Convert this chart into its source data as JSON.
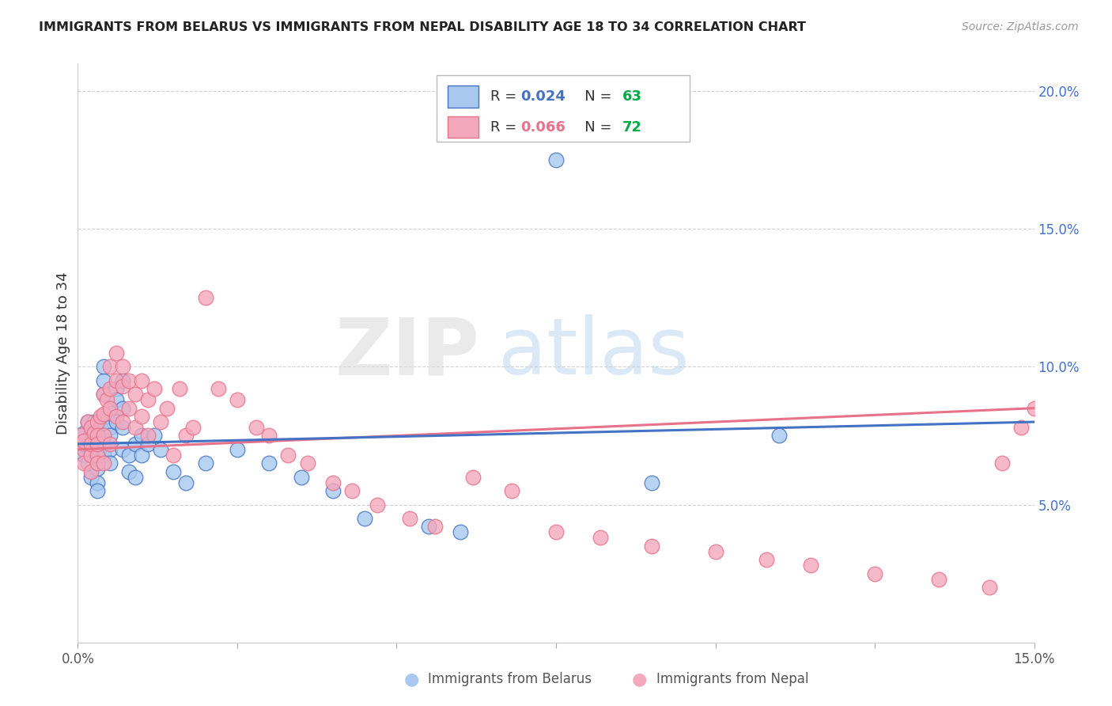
{
  "title": "IMMIGRANTS FROM BELARUS VS IMMIGRANTS FROM NEPAL DISABILITY AGE 18 TO 34 CORRELATION CHART",
  "source": "Source: ZipAtlas.com",
  "ylabel_label": "Disability Age 18 to 34",
  "xlim": [
    0.0,
    0.15
  ],
  "ylim": [
    0.0,
    0.21
  ],
  "legend_r1": "0.024",
  "legend_n1": "63",
  "legend_r2": "0.066",
  "legend_n2": "72",
  "color_belarus": "#a8c8f0",
  "color_nepal": "#f4a8bc",
  "color_line_belarus": "#4472C4",
  "color_line_nepal": "#E8728A",
  "color_n_green": "#00aa44",
  "watermark_zip": "ZIP",
  "watermark_atlas": "atlas",
  "belarus_x": [
    0.0005,
    0.001,
    0.001,
    0.001,
    0.0015,
    0.0015,
    0.002,
    0.002,
    0.002,
    0.002,
    0.002,
    0.0025,
    0.0025,
    0.003,
    0.003,
    0.003,
    0.003,
    0.003,
    0.003,
    0.003,
    0.003,
    0.0035,
    0.004,
    0.004,
    0.004,
    0.004,
    0.004,
    0.004,
    0.0045,
    0.005,
    0.005,
    0.005,
    0.005,
    0.005,
    0.006,
    0.006,
    0.006,
    0.007,
    0.007,
    0.007,
    0.007,
    0.008,
    0.008,
    0.009,
    0.009,
    0.01,
    0.01,
    0.011,
    0.012,
    0.013,
    0.015,
    0.017,
    0.02,
    0.025,
    0.03,
    0.035,
    0.04,
    0.045,
    0.055,
    0.06,
    0.075,
    0.09,
    0.11
  ],
  "belarus_y": [
    0.073,
    0.068,
    0.072,
    0.076,
    0.065,
    0.08,
    0.07,
    0.073,
    0.076,
    0.068,
    0.06,
    0.075,
    0.08,
    0.07,
    0.073,
    0.068,
    0.075,
    0.065,
    0.063,
    0.058,
    0.055,
    0.078,
    0.072,
    0.068,
    0.075,
    0.09,
    0.095,
    0.1,
    0.082,
    0.078,
    0.085,
    0.075,
    0.07,
    0.065,
    0.092,
    0.088,
    0.08,
    0.095,
    0.085,
    0.078,
    0.07,
    0.068,
    0.062,
    0.072,
    0.06,
    0.075,
    0.068,
    0.072,
    0.075,
    0.07,
    0.062,
    0.058,
    0.065,
    0.07,
    0.065,
    0.06,
    0.055,
    0.045,
    0.042,
    0.04,
    0.175,
    0.058,
    0.075
  ],
  "nepal_x": [
    0.0005,
    0.001,
    0.001,
    0.001,
    0.0015,
    0.002,
    0.002,
    0.002,
    0.002,
    0.0025,
    0.003,
    0.003,
    0.003,
    0.003,
    0.003,
    0.0035,
    0.004,
    0.004,
    0.004,
    0.004,
    0.0045,
    0.005,
    0.005,
    0.005,
    0.005,
    0.006,
    0.006,
    0.006,
    0.007,
    0.007,
    0.007,
    0.008,
    0.008,
    0.009,
    0.009,
    0.01,
    0.01,
    0.011,
    0.011,
    0.012,
    0.013,
    0.014,
    0.015,
    0.016,
    0.017,
    0.018,
    0.02,
    0.022,
    0.025,
    0.028,
    0.03,
    0.033,
    0.036,
    0.04,
    0.043,
    0.047,
    0.052,
    0.056,
    0.062,
    0.068,
    0.075,
    0.082,
    0.09,
    0.1,
    0.108,
    0.115,
    0.125,
    0.135,
    0.143,
    0.15,
    0.148,
    0.145
  ],
  "nepal_y": [
    0.075,
    0.07,
    0.073,
    0.065,
    0.08,
    0.068,
    0.072,
    0.078,
    0.062,
    0.076,
    0.08,
    0.075,
    0.068,
    0.072,
    0.065,
    0.082,
    0.09,
    0.083,
    0.075,
    0.065,
    0.088,
    0.1,
    0.092,
    0.085,
    0.072,
    0.105,
    0.095,
    0.082,
    0.1,
    0.093,
    0.08,
    0.095,
    0.085,
    0.09,
    0.078,
    0.095,
    0.082,
    0.088,
    0.075,
    0.092,
    0.08,
    0.085,
    0.068,
    0.092,
    0.075,
    0.078,
    0.125,
    0.092,
    0.088,
    0.078,
    0.075,
    0.068,
    0.065,
    0.058,
    0.055,
    0.05,
    0.045,
    0.042,
    0.06,
    0.055,
    0.04,
    0.038,
    0.035,
    0.033,
    0.03,
    0.028,
    0.025,
    0.023,
    0.02,
    0.085,
    0.078,
    0.065
  ]
}
